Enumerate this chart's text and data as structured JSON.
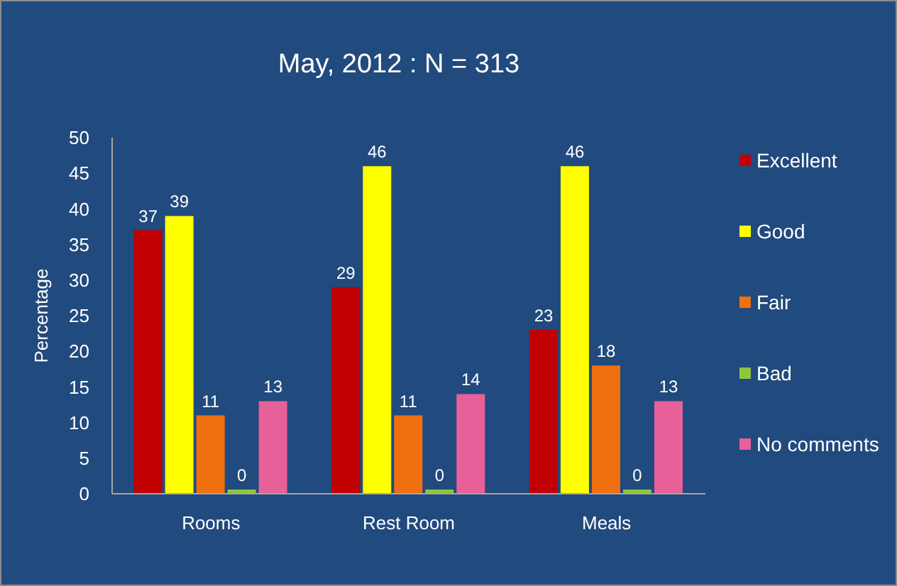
{
  "chart_data": {
    "type": "bar",
    "title": "May, 2012 : N = 313",
    "ylabel": "Percentage",
    "categories": [
      "Rooms",
      "Rest Room",
      "Meals"
    ],
    "series": [
      {
        "name": "Excellent",
        "color": "#c00000",
        "values": [
          37,
          29,
          23
        ]
      },
      {
        "name": "Good",
        "color": "#ffff00",
        "values": [
          39,
          46,
          46
        ]
      },
      {
        "name": "Fair",
        "color": "#f07010",
        "values": [
          11,
          11,
          18
        ]
      },
      {
        "name": "Bad",
        "color": "#8cc63f",
        "values": [
          0,
          0,
          0
        ]
      },
      {
        "name": "No comments",
        "color": "#e7609a",
        "values": [
          13,
          14,
          13
        ]
      }
    ],
    "ylim": [
      0,
      50
    ],
    "yticks": [
      0,
      5,
      10,
      15,
      20,
      25,
      30,
      35,
      40,
      45,
      50
    ],
    "data_labels": true,
    "legend": "right"
  }
}
